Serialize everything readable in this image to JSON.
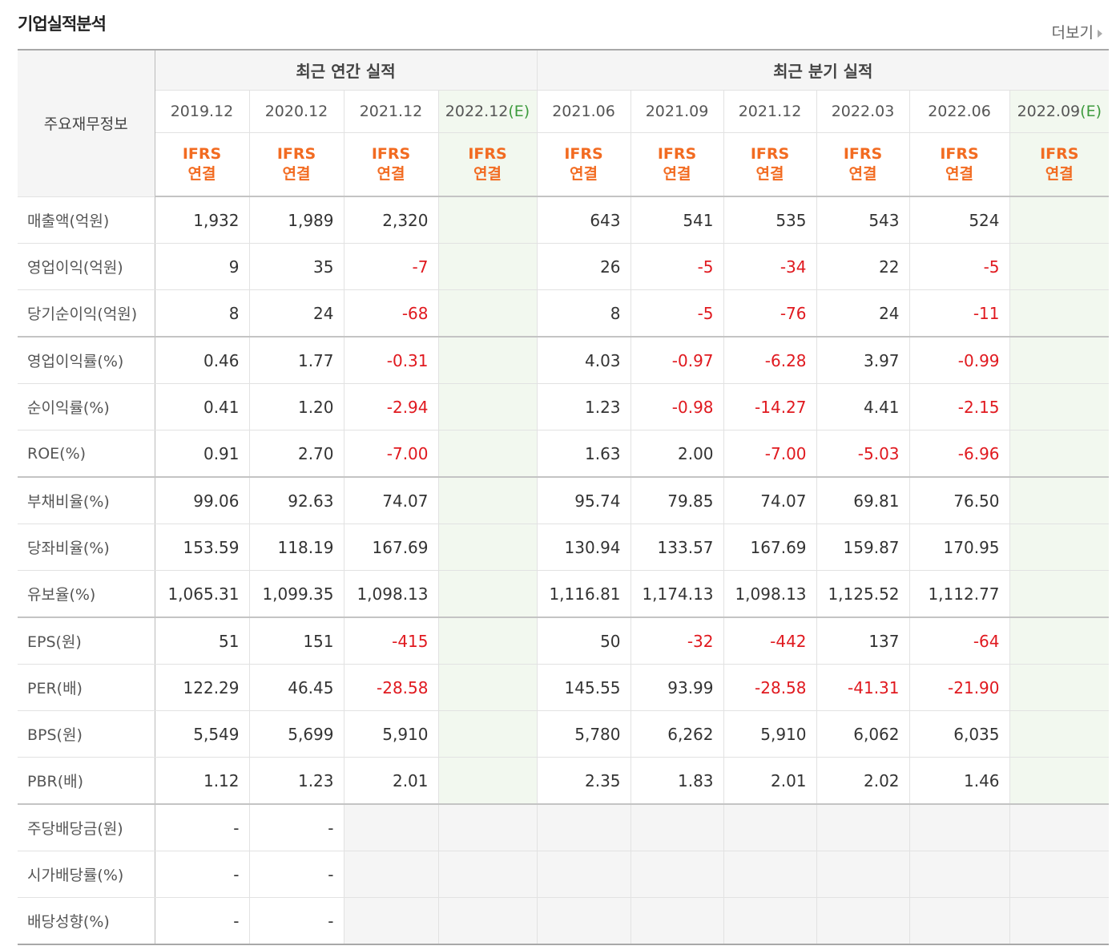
{
  "header": {
    "title": "기업실적분석",
    "more": "더보기"
  },
  "table": {
    "corner": "주요재무정보",
    "groups": [
      {
        "title": "최근 연간 실적",
        "periods": [
          {
            "date": "2019.12",
            "standard": "IFRS",
            "scope": "연결"
          },
          {
            "date": "2020.12",
            "standard": "IFRS",
            "scope": "연결"
          },
          {
            "date": "2021.12",
            "standard": "IFRS",
            "scope": "연결"
          },
          {
            "date": "2022.12",
            "mark": "(E)",
            "standard": "IFRS",
            "scope": "연결"
          }
        ]
      },
      {
        "title": "최근 분기 실적",
        "periods": [
          {
            "date": "2021.06",
            "standard": "IFRS",
            "scope": "연결"
          },
          {
            "date": "2021.09",
            "standard": "IFRS",
            "scope": "연결"
          },
          {
            "date": "2021.12",
            "standard": "IFRS",
            "scope": "연결"
          },
          {
            "date": "2022.03",
            "standard": "IFRS",
            "scope": "연결"
          },
          {
            "date": "2022.06",
            "standard": "IFRS",
            "scope": "연결"
          },
          {
            "date": "2022.09",
            "mark": "(E)",
            "standard": "IFRS",
            "scope": "연결"
          }
        ]
      }
    ],
    "sections": [
      {
        "rows": [
          {
            "label": "매출액(억원)",
            "values": [
              "1,932",
              "1,989",
              "2,320",
              null,
              "643",
              "541",
              "535",
              "543",
              "524",
              null
            ]
          },
          {
            "label": "영업이익(억원)",
            "values": [
              "9",
              "35",
              "-7",
              null,
              "26",
              "-5",
              "-34",
              "22",
              "-5",
              null
            ]
          },
          {
            "label": "당기순이익(억원)",
            "values": [
              "8",
              "24",
              "-68",
              null,
              "8",
              "-5",
              "-76",
              "24",
              "-11",
              null
            ]
          }
        ]
      },
      {
        "rows": [
          {
            "label": "영업이익률(%)",
            "values": [
              "0.46",
              "1.77",
              "-0.31",
              null,
              "4.03",
              "-0.97",
              "-6.28",
              "3.97",
              "-0.99",
              null
            ]
          },
          {
            "label": "순이익률(%)",
            "values": [
              "0.41",
              "1.20",
              "-2.94",
              null,
              "1.23",
              "-0.98",
              "-14.27",
              "4.41",
              "-2.15",
              null
            ]
          },
          {
            "label": "ROE(%)",
            "values": [
              "0.91",
              "2.70",
              "-7.00",
              null,
              "1.63",
              "2.00",
              "-7.00",
              "-5.03",
              "-6.96",
              null
            ]
          }
        ]
      },
      {
        "rows": [
          {
            "label": "부채비율(%)",
            "values": [
              "99.06",
              "92.63",
              "74.07",
              null,
              "95.74",
              "79.85",
              "74.07",
              "69.81",
              "76.50",
              null
            ]
          },
          {
            "label": "당좌비율(%)",
            "values": [
              "153.59",
              "118.19",
              "167.69",
              null,
              "130.94",
              "133.57",
              "167.69",
              "159.87",
              "170.95",
              null
            ]
          },
          {
            "label": "유보율(%)",
            "values": [
              "1,065.31",
              "1,099.35",
              "1,098.13",
              null,
              "1,116.81",
              "1,174.13",
              "1,098.13",
              "1,125.52",
              "1,112.77",
              null
            ]
          }
        ]
      },
      {
        "rows": [
          {
            "label": "EPS(원)",
            "values": [
              "51",
              "151",
              "-415",
              null,
              "50",
              "-32",
              "-442",
              "137",
              "-64",
              null
            ]
          },
          {
            "label": "PER(배)",
            "values": [
              "122.29",
              "46.45",
              "-28.58",
              null,
              "145.55",
              "93.99",
              "-28.58",
              "-41.31",
              "-21.90",
              null
            ]
          },
          {
            "label": "BPS(원)",
            "values": [
              "5,549",
              "5,699",
              "5,910",
              null,
              "5,780",
              "6,262",
              "5,910",
              "6,062",
              "6,035",
              null
            ]
          },
          {
            "label": "PBR(배)",
            "values": [
              "1.12",
              "1.23",
              "2.01",
              null,
              "2.35",
              "1.83",
              "2.01",
              "2.02",
              "1.46",
              null
            ]
          }
        ]
      },
      {
        "rows": [
          {
            "label": "주당배당금(원)",
            "values": [
              "-",
              "-",
              null,
              null,
              null,
              null,
              null,
              null,
              null,
              null
            ]
          },
          {
            "label": "시가배당률(%)",
            "values": [
              "-",
              "-",
              null,
              null,
              null,
              null,
              null,
              null,
              null,
              null
            ]
          },
          {
            "label": "배당성향(%)",
            "values": [
              "-",
              "-",
              null,
              null,
              null,
              null,
              null,
              null,
              null,
              null
            ]
          }
        ]
      }
    ]
  }
}
